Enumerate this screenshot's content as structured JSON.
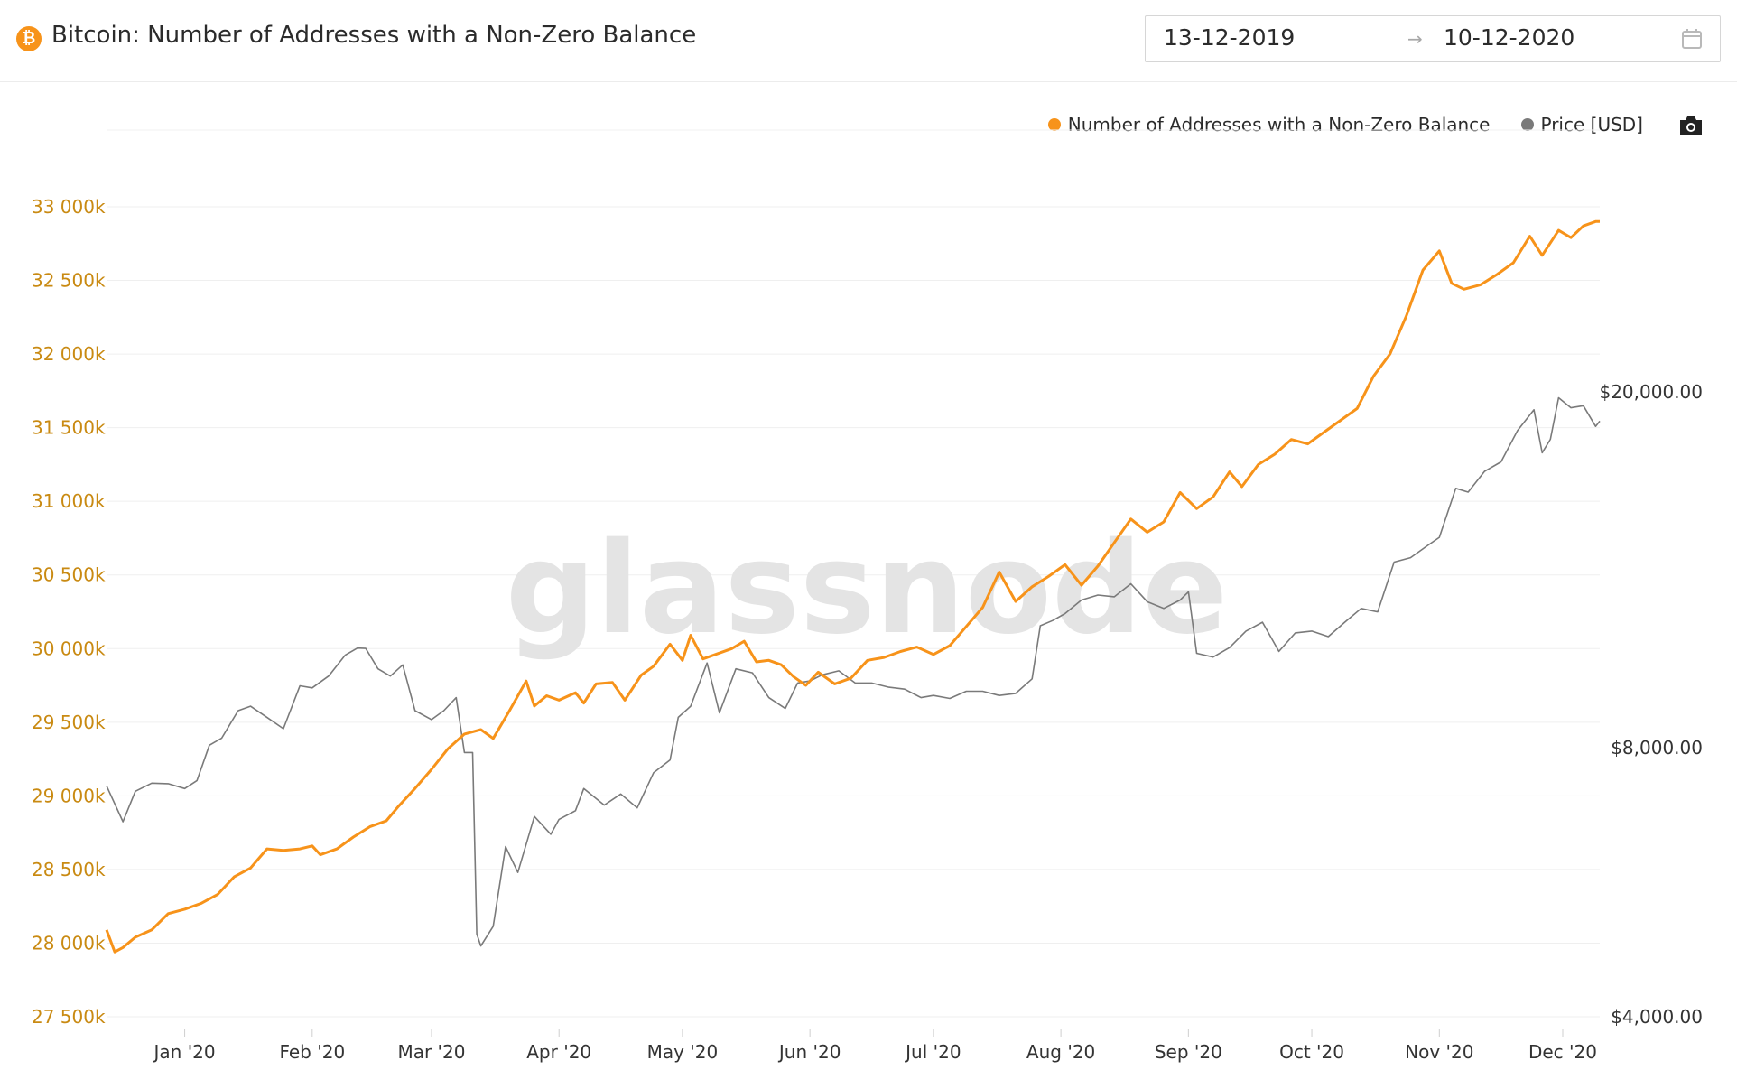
{
  "header": {
    "title": "Bitcoin: Number of Addresses with a Non-Zero Balance",
    "coin_icon": "bitcoin-icon",
    "date_start": "13-12-2019",
    "date_end": "10-12-2020",
    "date_separator": "→",
    "calendar_icon": "calendar-icon"
  },
  "toolbar": {
    "camera_icon": "camera-icon"
  },
  "watermark": "glassnode",
  "colors": {
    "addresses": "#f7931a",
    "price": "#7a7a7a",
    "left_axis_text": "#c98a12"
  },
  "chart_data": {
    "type": "line",
    "title": "Bitcoin: Number of Addresses with a Non-Zero Balance",
    "legend_position": "top-right",
    "grid": true,
    "x_range": [
      "2019-12-13",
      "2020-12-10"
    ],
    "x_ticks": [
      {
        "date": "2020-01-01",
        "label": "Jan '20"
      },
      {
        "date": "2020-02-01",
        "label": "Feb '20"
      },
      {
        "date": "2020-03-01",
        "label": "Mar '20"
      },
      {
        "date": "2020-04-01",
        "label": "Apr '20"
      },
      {
        "date": "2020-05-01",
        "label": "May '20"
      },
      {
        "date": "2020-06-01",
        "label": "Jun '20"
      },
      {
        "date": "2020-07-01",
        "label": "Jul '20"
      },
      {
        "date": "2020-08-01",
        "label": "Aug '20"
      },
      {
        "date": "2020-09-01",
        "label": "Sep '20"
      },
      {
        "date": "2020-10-01",
        "label": "Oct '20"
      },
      {
        "date": "2020-11-01",
        "label": "Nov '20"
      },
      {
        "date": "2020-12-01",
        "label": "Dec '20"
      }
    ],
    "y_left": {
      "scale": "linear",
      "ylim": [
        27500000,
        33000000
      ],
      "ticks": [
        {
          "value": 27500000,
          "label": "27 500k"
        },
        {
          "value": 28000000,
          "label": "28 000k"
        },
        {
          "value": 28500000,
          "label": "28 500k"
        },
        {
          "value": 29000000,
          "label": "29 000k"
        },
        {
          "value": 29500000,
          "label": "29 500k"
        },
        {
          "value": 30000000,
          "label": "30 000k"
        },
        {
          "value": 30500000,
          "label": "30 500k"
        },
        {
          "value": 31000000,
          "label": "31 000k"
        },
        {
          "value": 31500000,
          "label": "31 500k"
        },
        {
          "value": 32000000,
          "label": "32 000k"
        },
        {
          "value": 32500000,
          "label": "32 500k"
        },
        {
          "value": 33000000,
          "label": "33 000k"
        }
      ]
    },
    "y_right": {
      "scale": "log",
      "ticks": [
        {
          "value": 4000,
          "label": "$4,000.00"
        },
        {
          "value": 8000,
          "label": "$8,000.00"
        },
        {
          "value": 20000,
          "label": "$20,000.00"
        }
      ]
    },
    "series": [
      {
        "name": "Number of Addresses with a Non-Zero Balance",
        "axis": "left",
        "color": "#f7931a",
        "points": [
          [
            "2019-12-13",
            28090000
          ],
          [
            "2019-12-15",
            27940000
          ],
          [
            "2019-12-17",
            27970000
          ],
          [
            "2019-12-20",
            28040000
          ],
          [
            "2019-12-24",
            28090000
          ],
          [
            "2019-12-28",
            28200000
          ],
          [
            "2020-01-01",
            28230000
          ],
          [
            "2020-01-05",
            28270000
          ],
          [
            "2020-01-09",
            28330000
          ],
          [
            "2020-01-13",
            28450000
          ],
          [
            "2020-01-17",
            28510000
          ],
          [
            "2020-01-21",
            28640000
          ],
          [
            "2020-01-25",
            28630000
          ],
          [
            "2020-01-29",
            28640000
          ],
          [
            "2020-02-01",
            28660000
          ],
          [
            "2020-02-03",
            28600000
          ],
          [
            "2020-02-07",
            28640000
          ],
          [
            "2020-02-11",
            28720000
          ],
          [
            "2020-02-15",
            28790000
          ],
          [
            "2020-02-19",
            28830000
          ],
          [
            "2020-02-22",
            28930000
          ],
          [
            "2020-02-26",
            29050000
          ],
          [
            "2020-03-01",
            29180000
          ],
          [
            "2020-03-05",
            29320000
          ],
          [
            "2020-03-09",
            29420000
          ],
          [
            "2020-03-13",
            29450000
          ],
          [
            "2020-03-16",
            29390000
          ],
          [
            "2020-03-20",
            29580000
          ],
          [
            "2020-03-24",
            29780000
          ],
          [
            "2020-03-26",
            29610000
          ],
          [
            "2020-03-29",
            29680000
          ],
          [
            "2020-04-01",
            29650000
          ],
          [
            "2020-04-05",
            29700000
          ],
          [
            "2020-04-07",
            29630000
          ],
          [
            "2020-04-10",
            29760000
          ],
          [
            "2020-04-14",
            29770000
          ],
          [
            "2020-04-17",
            29650000
          ],
          [
            "2020-04-21",
            29820000
          ],
          [
            "2020-04-24",
            29880000
          ],
          [
            "2020-04-28",
            30030000
          ],
          [
            "2020-05-01",
            29920000
          ],
          [
            "2020-05-03",
            30090000
          ],
          [
            "2020-05-06",
            29930000
          ],
          [
            "2020-05-09",
            29960000
          ],
          [
            "2020-05-13",
            30000000
          ],
          [
            "2020-05-16",
            30050000
          ],
          [
            "2020-05-19",
            29910000
          ],
          [
            "2020-05-22",
            29920000
          ],
          [
            "2020-05-25",
            29890000
          ],
          [
            "2020-05-28",
            29810000
          ],
          [
            "2020-05-31",
            29750000
          ],
          [
            "2020-06-03",
            29840000
          ],
          [
            "2020-06-07",
            29760000
          ],
          [
            "2020-06-11",
            29800000
          ],
          [
            "2020-06-15",
            29920000
          ],
          [
            "2020-06-19",
            29940000
          ],
          [
            "2020-06-23",
            29980000
          ],
          [
            "2020-06-27",
            30010000
          ],
          [
            "2020-07-01",
            29960000
          ],
          [
            "2020-07-05",
            30020000
          ],
          [
            "2020-07-09",
            30150000
          ],
          [
            "2020-07-13",
            30280000
          ],
          [
            "2020-07-17",
            30520000
          ],
          [
            "2020-07-21",
            30320000
          ],
          [
            "2020-07-25",
            30420000
          ],
          [
            "2020-07-29",
            30490000
          ],
          [
            "2020-08-02",
            30570000
          ],
          [
            "2020-08-06",
            30430000
          ],
          [
            "2020-08-10",
            30560000
          ],
          [
            "2020-08-14",
            30720000
          ],
          [
            "2020-08-18",
            30880000
          ],
          [
            "2020-08-22",
            30790000
          ],
          [
            "2020-08-26",
            30860000
          ],
          [
            "2020-08-30",
            31060000
          ],
          [
            "2020-09-03",
            30950000
          ],
          [
            "2020-09-07",
            31030000
          ],
          [
            "2020-09-11",
            31200000
          ],
          [
            "2020-09-14",
            31100000
          ],
          [
            "2020-09-18",
            31250000
          ],
          [
            "2020-09-22",
            31320000
          ],
          [
            "2020-09-26",
            31420000
          ],
          [
            "2020-09-30",
            31390000
          ],
          [
            "2020-10-04",
            31470000
          ],
          [
            "2020-10-08",
            31550000
          ],
          [
            "2020-10-12",
            31630000
          ],
          [
            "2020-10-16",
            31850000
          ],
          [
            "2020-10-20",
            32000000
          ],
          [
            "2020-10-24",
            32260000
          ],
          [
            "2020-10-28",
            32570000
          ],
          [
            "2020-11-01",
            32700000
          ],
          [
            "2020-11-04",
            32480000
          ],
          [
            "2020-11-07",
            32440000
          ],
          [
            "2020-11-11",
            32470000
          ],
          [
            "2020-11-15",
            32540000
          ],
          [
            "2020-11-19",
            32620000
          ],
          [
            "2020-11-23",
            32800000
          ],
          [
            "2020-11-26",
            32670000
          ],
          [
            "2020-11-30",
            32840000
          ],
          [
            "2020-12-03",
            32790000
          ],
          [
            "2020-12-06",
            32870000
          ],
          [
            "2020-12-09",
            32900000
          ],
          [
            "2020-12-10",
            32900000
          ]
        ]
      },
      {
        "name": "Price [USD]",
        "axis": "right",
        "color": "#7a7a7a",
        "points": [
          [
            "2019-12-13",
            7250
          ],
          [
            "2019-12-17",
            6610
          ],
          [
            "2019-12-20",
            7150
          ],
          [
            "2019-12-24",
            7300
          ],
          [
            "2019-12-28",
            7290
          ],
          [
            "2020-01-01",
            7200
          ],
          [
            "2020-01-04",
            7350
          ],
          [
            "2020-01-07",
            8050
          ],
          [
            "2020-01-10",
            8200
          ],
          [
            "2020-01-14",
            8800
          ],
          [
            "2020-01-17",
            8900
          ],
          [
            "2020-01-21",
            8650
          ],
          [
            "2020-01-25",
            8400
          ],
          [
            "2020-01-29",
            9380
          ],
          [
            "2020-02-01",
            9330
          ],
          [
            "2020-02-05",
            9620
          ],
          [
            "2020-02-09",
            10150
          ],
          [
            "2020-02-12",
            10340
          ],
          [
            "2020-02-14",
            10330
          ],
          [
            "2020-02-17",
            9800
          ],
          [
            "2020-02-20",
            9620
          ],
          [
            "2020-02-23",
            9900
          ],
          [
            "2020-02-26",
            8800
          ],
          [
            "2020-03-01",
            8600
          ],
          [
            "2020-03-04",
            8800
          ],
          [
            "2020-03-07",
            9100
          ],
          [
            "2020-03-09",
            7900
          ],
          [
            "2020-03-11",
            7900
          ],
          [
            "2020-03-12",
            4950
          ],
          [
            "2020-03-13",
            4800
          ],
          [
            "2020-03-16",
            5050
          ],
          [
            "2020-03-19",
            6200
          ],
          [
            "2020-03-22",
            5800
          ],
          [
            "2020-03-26",
            6700
          ],
          [
            "2020-03-30",
            6400
          ],
          [
            "2020-04-01",
            6650
          ],
          [
            "2020-04-05",
            6800
          ],
          [
            "2020-04-07",
            7200
          ],
          [
            "2020-04-12",
            6900
          ],
          [
            "2020-04-16",
            7100
          ],
          [
            "2020-04-20",
            6850
          ],
          [
            "2020-04-24",
            7500
          ],
          [
            "2020-04-28",
            7750
          ],
          [
            "2020-04-30",
            8650
          ],
          [
            "2020-05-03",
            8900
          ],
          [
            "2020-05-07",
            9950
          ],
          [
            "2020-05-10",
            8750
          ],
          [
            "2020-05-14",
            9800
          ],
          [
            "2020-05-18",
            9700
          ],
          [
            "2020-05-22",
            9100
          ],
          [
            "2020-05-26",
            8850
          ],
          [
            "2020-05-29",
            9450
          ],
          [
            "2020-06-01",
            9500
          ],
          [
            "2020-06-04",
            9650
          ],
          [
            "2020-06-08",
            9750
          ],
          [
            "2020-06-12",
            9450
          ],
          [
            "2020-06-16",
            9450
          ],
          [
            "2020-06-20",
            9350
          ],
          [
            "2020-06-24",
            9300
          ],
          [
            "2020-06-28",
            9100
          ],
          [
            "2020-07-01",
            9150
          ],
          [
            "2020-07-05",
            9080
          ],
          [
            "2020-07-09",
            9250
          ],
          [
            "2020-07-13",
            9250
          ],
          [
            "2020-07-17",
            9150
          ],
          [
            "2020-07-21",
            9200
          ],
          [
            "2020-07-25",
            9550
          ],
          [
            "2020-07-27",
            10950
          ],
          [
            "2020-07-30",
            11100
          ],
          [
            "2020-08-02",
            11300
          ],
          [
            "2020-08-06",
            11700
          ],
          [
            "2020-08-10",
            11850
          ],
          [
            "2020-08-14",
            11800
          ],
          [
            "2020-08-18",
            12200
          ],
          [
            "2020-08-22",
            11650
          ],
          [
            "2020-08-26",
            11450
          ],
          [
            "2020-08-30",
            11700
          ],
          [
            "2020-09-01",
            11950
          ],
          [
            "2020-09-03",
            10200
          ],
          [
            "2020-09-07",
            10100
          ],
          [
            "2020-09-11",
            10350
          ],
          [
            "2020-09-15",
            10800
          ],
          [
            "2020-09-19",
            11050
          ],
          [
            "2020-09-23",
            10250
          ],
          [
            "2020-09-27",
            10750
          ],
          [
            "2020-10-01",
            10800
          ],
          [
            "2020-10-05",
            10650
          ],
          [
            "2020-10-09",
            11050
          ],
          [
            "2020-10-13",
            11450
          ],
          [
            "2020-10-17",
            11350
          ],
          [
            "2020-10-21",
            12900
          ],
          [
            "2020-10-25",
            13050
          ],
          [
            "2020-10-29",
            13450
          ],
          [
            "2020-11-01",
            13750
          ],
          [
            "2020-11-05",
            15600
          ],
          [
            "2020-11-08",
            15450
          ],
          [
            "2020-11-12",
            16300
          ],
          [
            "2020-11-16",
            16700
          ],
          [
            "2020-11-20",
            18100
          ],
          [
            "2020-11-24",
            19100
          ],
          [
            "2020-11-26",
            17100
          ],
          [
            "2020-11-28",
            17700
          ],
          [
            "2020-11-30",
            19700
          ],
          [
            "2020-12-03",
            19200
          ],
          [
            "2020-12-06",
            19300
          ],
          [
            "2020-12-09",
            18300
          ],
          [
            "2020-12-10",
            18550
          ]
        ]
      }
    ]
  }
}
